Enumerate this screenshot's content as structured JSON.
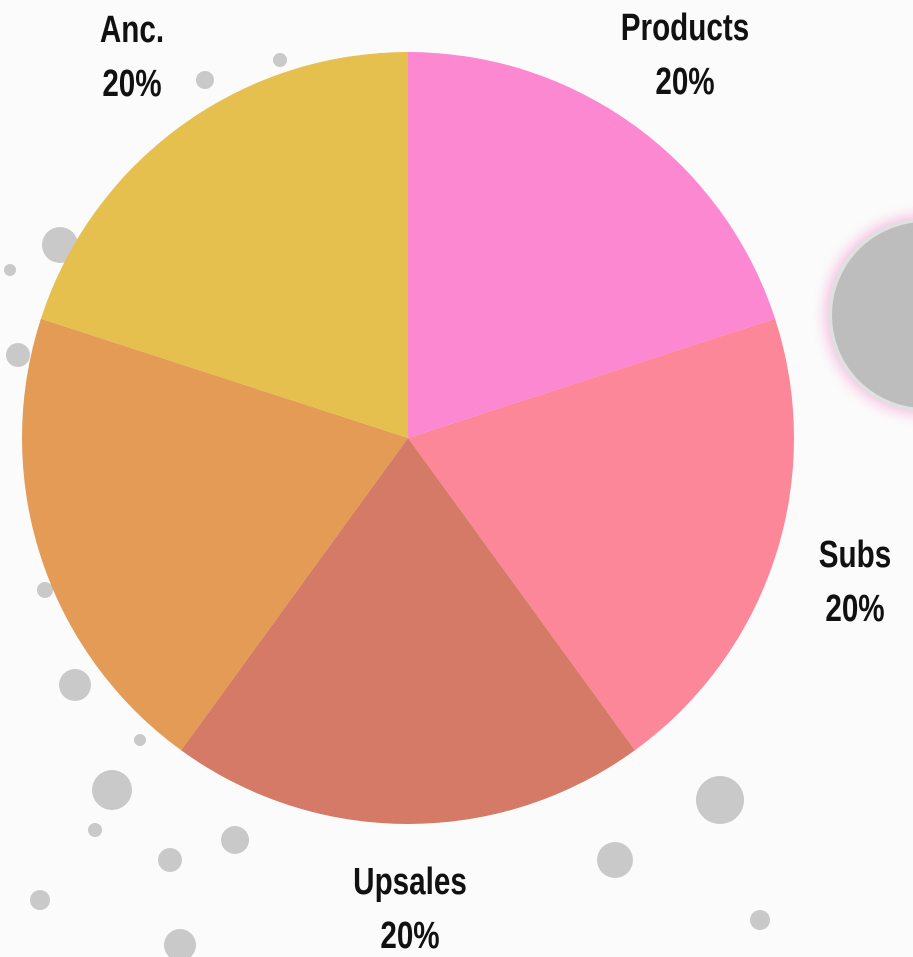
{
  "chart_data": {
    "type": "pie",
    "categories": [
      "Products",
      "Subs",
      "Upsales",
      null,
      "Anc."
    ],
    "values": [
      20,
      20,
      20,
      20,
      20
    ],
    "value_labels": [
      "20%",
      "20%",
      "20%",
      null,
      "20%"
    ],
    "colors": [
      "#fb88d1",
      "#fb8798",
      "#d47a66",
      "#e39b55",
      "#e6c04f"
    ]
  }
}
